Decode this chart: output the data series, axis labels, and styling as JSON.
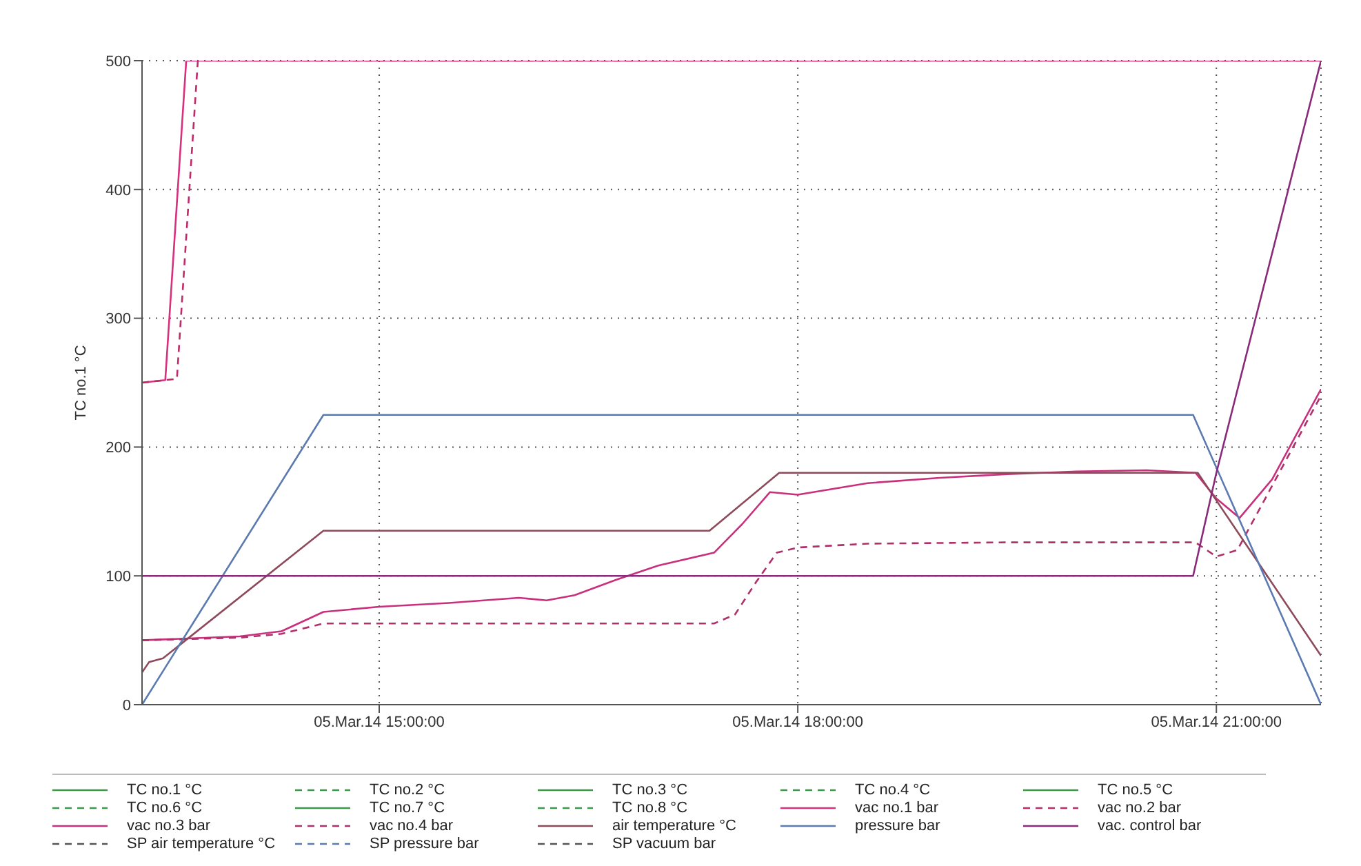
{
  "chart_data": {
    "type": "line",
    "ylabel": "TC no.1 °C",
    "xlim": [
      "--03-05T13:18",
      "--03-05T21:45"
    ],
    "xticks": [
      {
        "value": "--03-05T15:00",
        "label": "05.Mar.14 15:00:00"
      },
      {
        "value": "--03-05T18:00",
        "label": "05.Mar.14 18:00:00"
      },
      {
        "value": "--03-05T21:00",
        "label": "05.Mar.14 21:00:00"
      }
    ],
    "ylim": [
      0,
      500
    ],
    "yticks": [
      0,
      100,
      200,
      300,
      400,
      500
    ],
    "grid": true,
    "legend": "bottom",
    "marker": "none",
    "series": [
      {
        "name": "TC no.1 °C",
        "color": "#3a9a4a",
        "line_style": "solid"
      },
      {
        "name": "TC no.2 °C",
        "color": "#3a9a4a",
        "line_style": "dashed"
      },
      {
        "name": "TC no.3 °C",
        "color": "#3a9a4a",
        "line_style": "solid"
      },
      {
        "name": "TC no.4 °C",
        "color": "#3a9a4a",
        "line_style": "dashed"
      },
      {
        "name": "TC no.5 °C",
        "color": "#3a9a4a",
        "line_style": "solid"
      },
      {
        "name": "TC no.6 °C",
        "color": "#3a9a4a",
        "line_style": "dashed"
      },
      {
        "name": "TC no.7 °C",
        "color": "#3a9a4a",
        "line_style": "solid"
      },
      {
        "name": "TC no.8 °C",
        "color": "#3a9a4a",
        "line_style": "dashed"
      },
      {
        "name": "vac no.1 bar",
        "color": "#d6307e",
        "line_style": "solid",
        "x": [
          "--03-05T13:18",
          "--03-05T13:28",
          "--03-05T13:37",
          "--03-05T21:45"
        ],
        "values": [
          250,
          252,
          500,
          500
        ]
      },
      {
        "name": "vac no.2 bar",
        "color": "#c02a6a",
        "line_style": "dashed",
        "x": [
          "--03-05T13:18",
          "--03-05T13:33",
          "--03-05T13:42",
          "--03-05T21:45"
        ],
        "values": [
          250,
          253,
          500,
          500
        ]
      },
      {
        "name": "vac no.3 bar",
        "color": "#c8307e",
        "line_style": "solid",
        "x": [
          "--03-05T13:18",
          "--03-05T14:00",
          "--03-05T14:18",
          "--03-05T14:36",
          "--03-05T15:00",
          "--03-05T15:30",
          "--03-05T16:00",
          "--03-05T16:12",
          "--03-05T16:24",
          "--03-05T16:42",
          "--03-05T17:00",
          "--03-05T17:24",
          "--03-05T17:36",
          "--03-05T17:48",
          "--03-05T18:00",
          "--03-05T18:30",
          "--03-05T19:00",
          "--03-05T19:30",
          "--03-05T20:00",
          "--03-05T20:30",
          "--03-05T20:51",
          "--03-05T21:00",
          "--03-05T21:10",
          "--03-05T21:24",
          "--03-05T21:45"
        ],
        "values": [
          50,
          53,
          57,
          72,
          76,
          79,
          83,
          81,
          85,
          97,
          108,
          118,
          140,
          165,
          163,
          172,
          176,
          179,
          181,
          182,
          180,
          160,
          145,
          175,
          245
        ]
      },
      {
        "name": "vac no.4 bar",
        "color": "#b0306a",
        "line_style": "dashed",
        "x": [
          "--03-05T13:18",
          "--03-05T14:00",
          "--03-05T14:18",
          "--03-05T14:36",
          "--03-05T17:24",
          "--03-05T17:33",
          "--03-05T17:42",
          "--03-05T17:51",
          "--03-05T18:00",
          "--03-05T18:30",
          "--03-05T19:30",
          "--03-05T20:51",
          "--03-05T21:00",
          "--03-05T21:09",
          "--03-05T21:24",
          "--03-05T21:45"
        ],
        "values": [
          50,
          52,
          55,
          63,
          63,
          70,
          95,
          118,
          122,
          125,
          126,
          126,
          115,
          120,
          170,
          240
        ]
      },
      {
        "name": "air temperature °C",
        "color": "#8c4a5a",
        "line_style": "solid",
        "x": [
          "--03-05T13:18",
          "--03-05T13:21",
          "--03-05T13:27",
          "--03-05T14:36",
          "--03-05T17:22",
          "--03-05T17:52",
          "--03-05T20:52",
          "--03-05T21:45"
        ],
        "values": [
          25,
          33,
          36,
          135,
          135,
          180,
          180,
          38
        ]
      },
      {
        "name": "pressure bar",
        "color": "#5a7ab0",
        "line_style": "solid",
        "x": [
          "--03-05T13:18",
          "--03-05T14:36",
          "--03-05T20:50",
          "--03-05T21:45"
        ],
        "values": [
          0,
          225,
          225,
          0
        ]
      },
      {
        "name": "vac. control bar",
        "color": "#8a2a7a",
        "line_style": "solid",
        "x": [
          "--03-05T13:18",
          "--03-05T20:50",
          "--03-05T21:00",
          "--03-05T21:45"
        ],
        "values": [
          100,
          100,
          180,
          500
        ]
      },
      {
        "name": "SP air temperature °C",
        "color": "#555555",
        "line_style": "dashed"
      },
      {
        "name": "SP pressure bar",
        "color": "#5a7ab0",
        "line_style": "dashed"
      },
      {
        "name": "SP vacuum bar",
        "color": "#555555",
        "line_style": "dashed"
      }
    ]
  }
}
